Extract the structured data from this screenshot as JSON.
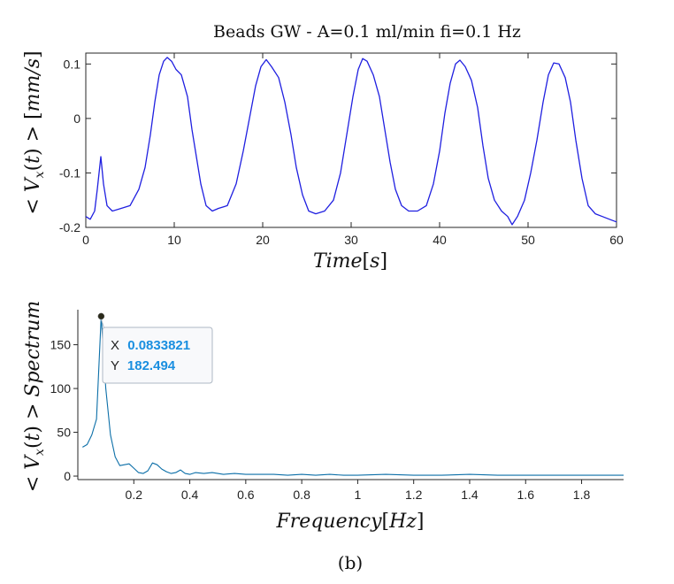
{
  "caption": "(b)",
  "colors": {
    "top_line": "#1f1fe0",
    "bottom_line": "#0c6fa8",
    "axis": "#262626",
    "tooltip_value": "#1a8fe0",
    "tooltip_border": "#aeb8c4",
    "tooltip_bg": "#f8f9fb"
  },
  "chart_data": [
    {
      "type": "line",
      "title": "Beads GW - A=0.1 ml/min fi=0.1 Hz",
      "xlabel": "Time[s]",
      "ylabel": "< V_x(t) > [mm/s]",
      "xlim": [
        0,
        60
      ],
      "ylim": [
        -0.2,
        0.12
      ],
      "xticks": [
        0,
        10,
        20,
        30,
        40,
        50,
        60
      ],
      "xtick_labels": [
        "0",
        "10",
        "20",
        "30",
        "40",
        "50",
        "60"
      ],
      "yticks": [
        -0.2,
        -0.1,
        0,
        0.1
      ],
      "ytick_labels": [
        "-0.2",
        "-0.1",
        "0",
        "0.1"
      ],
      "grid": false,
      "series": [
        {
          "x": [
            0,
            0.5,
            1,
            1.3,
            1.7,
            2.0,
            2.4,
            3.0,
            4.0,
            5.0,
            6.0,
            6.7,
            7.3,
            7.8,
            8.3,
            8.8,
            9.2,
            9.7,
            10.2,
            10.8,
            11.5,
            12.0,
            12.5,
            13.0,
            13.6,
            14.3,
            15.0,
            16.0,
            17.0,
            17.8,
            18.5,
            19.2,
            19.8,
            20.4,
            21.0,
            21.8,
            22.5,
            23.2,
            23.8,
            24.5,
            25.2,
            26.0,
            27.0,
            28.0,
            28.8,
            29.5,
            30.2,
            30.8,
            31.3,
            31.8,
            32.5,
            33.2,
            33.8,
            34.4,
            35.0,
            35.7,
            36.5,
            37.5,
            38.5,
            39.3,
            40.0,
            40.6,
            41.2,
            41.8,
            42.3,
            42.9,
            43.6,
            44.3,
            44.9,
            45.5,
            46.2,
            47.0,
            47.7,
            48.2,
            48.8,
            49.6,
            50.3,
            51.0,
            51.7,
            52.3,
            52.9,
            53.5,
            54.2,
            54.8,
            55.4,
            56.1,
            56.8,
            57.6,
            58.4,
            59.2,
            60.0
          ],
          "y": [
            -0.18,
            -0.185,
            -0.17,
            -0.13,
            -0.07,
            -0.12,
            -0.16,
            -0.17,
            -0.165,
            -0.16,
            -0.13,
            -0.09,
            -0.03,
            0.03,
            0.08,
            0.105,
            0.112,
            0.105,
            0.09,
            0.08,
            0.04,
            -0.02,
            -0.07,
            -0.12,
            -0.16,
            -0.17,
            -0.165,
            -0.16,
            -0.12,
            -0.06,
            0.0,
            0.06,
            0.095,
            0.108,
            0.095,
            0.075,
            0.03,
            -0.03,
            -0.09,
            -0.14,
            -0.17,
            -0.175,
            -0.17,
            -0.15,
            -0.1,
            -0.03,
            0.04,
            0.09,
            0.11,
            0.105,
            0.08,
            0.04,
            -0.02,
            -0.08,
            -0.13,
            -0.16,
            -0.17,
            -0.17,
            -0.16,
            -0.12,
            -0.06,
            0.01,
            0.065,
            0.1,
            0.107,
            0.095,
            0.07,
            0.02,
            -0.05,
            -0.11,
            -0.15,
            -0.17,
            -0.18,
            -0.195,
            -0.18,
            -0.15,
            -0.1,
            -0.04,
            0.03,
            0.08,
            0.102,
            0.1,
            0.075,
            0.03,
            -0.04,
            -0.11,
            -0.16,
            -0.175,
            -0.18,
            -0.185,
            -0.19
          ]
        }
      ]
    },
    {
      "type": "line",
      "title": "",
      "xlabel": "Frequency[Hz]",
      "ylabel": "< V_x(t) > Spectrum",
      "xlim": [
        0,
        1.95
      ],
      "ylim": [
        -4,
        190
      ],
      "xticks": [
        0.2,
        0.4,
        0.6,
        0.8,
        1.0,
        1.2,
        1.4,
        1.6,
        1.8
      ],
      "xtick_labels": [
        "0.2",
        "0.4",
        "0.6",
        "0.8",
        "1",
        "1.2",
        "1.4",
        "1.6",
        "1.8"
      ],
      "yticks": [
        0,
        50,
        100,
        150
      ],
      "ytick_labels": [
        "0",
        "50",
        "100",
        "150"
      ],
      "grid": false,
      "series": [
        {
          "x": [
            0.0167,
            0.0333,
            0.05,
            0.0667,
            0.0833,
            0.1,
            0.1167,
            0.1333,
            0.15,
            0.1667,
            0.1833,
            0.2,
            0.2167,
            0.2333,
            0.25,
            0.2667,
            0.2833,
            0.3,
            0.3167,
            0.3333,
            0.35,
            0.3667,
            0.3833,
            0.4,
            0.42,
            0.45,
            0.48,
            0.52,
            0.56,
            0.6,
            0.65,
            0.7,
            0.75,
            0.8,
            0.85,
            0.9,
            0.95,
            1.0,
            1.1,
            1.2,
            1.3,
            1.4,
            1.5,
            1.6,
            1.7,
            1.8,
            1.9,
            1.95
          ],
          "y": [
            33,
            36,
            47,
            65,
            182.494,
            100,
            47,
            22,
            12,
            13,
            14,
            9,
            4,
            3,
            6,
            15,
            13,
            8,
            5,
            3,
            4,
            7,
            3,
            2,
            4,
            3,
            4,
            2,
            3,
            2,
            2,
            2,
            1,
            2,
            1,
            2,
            1,
            1,
            2,
            1,
            1,
            2,
            1,
            1,
            1,
            1,
            1,
            1
          ]
        }
      ],
      "datatip": {
        "x_label": "X",
        "x_value": "0.0833821",
        "y_label": "Y",
        "y_value": "182.494"
      }
    }
  ]
}
